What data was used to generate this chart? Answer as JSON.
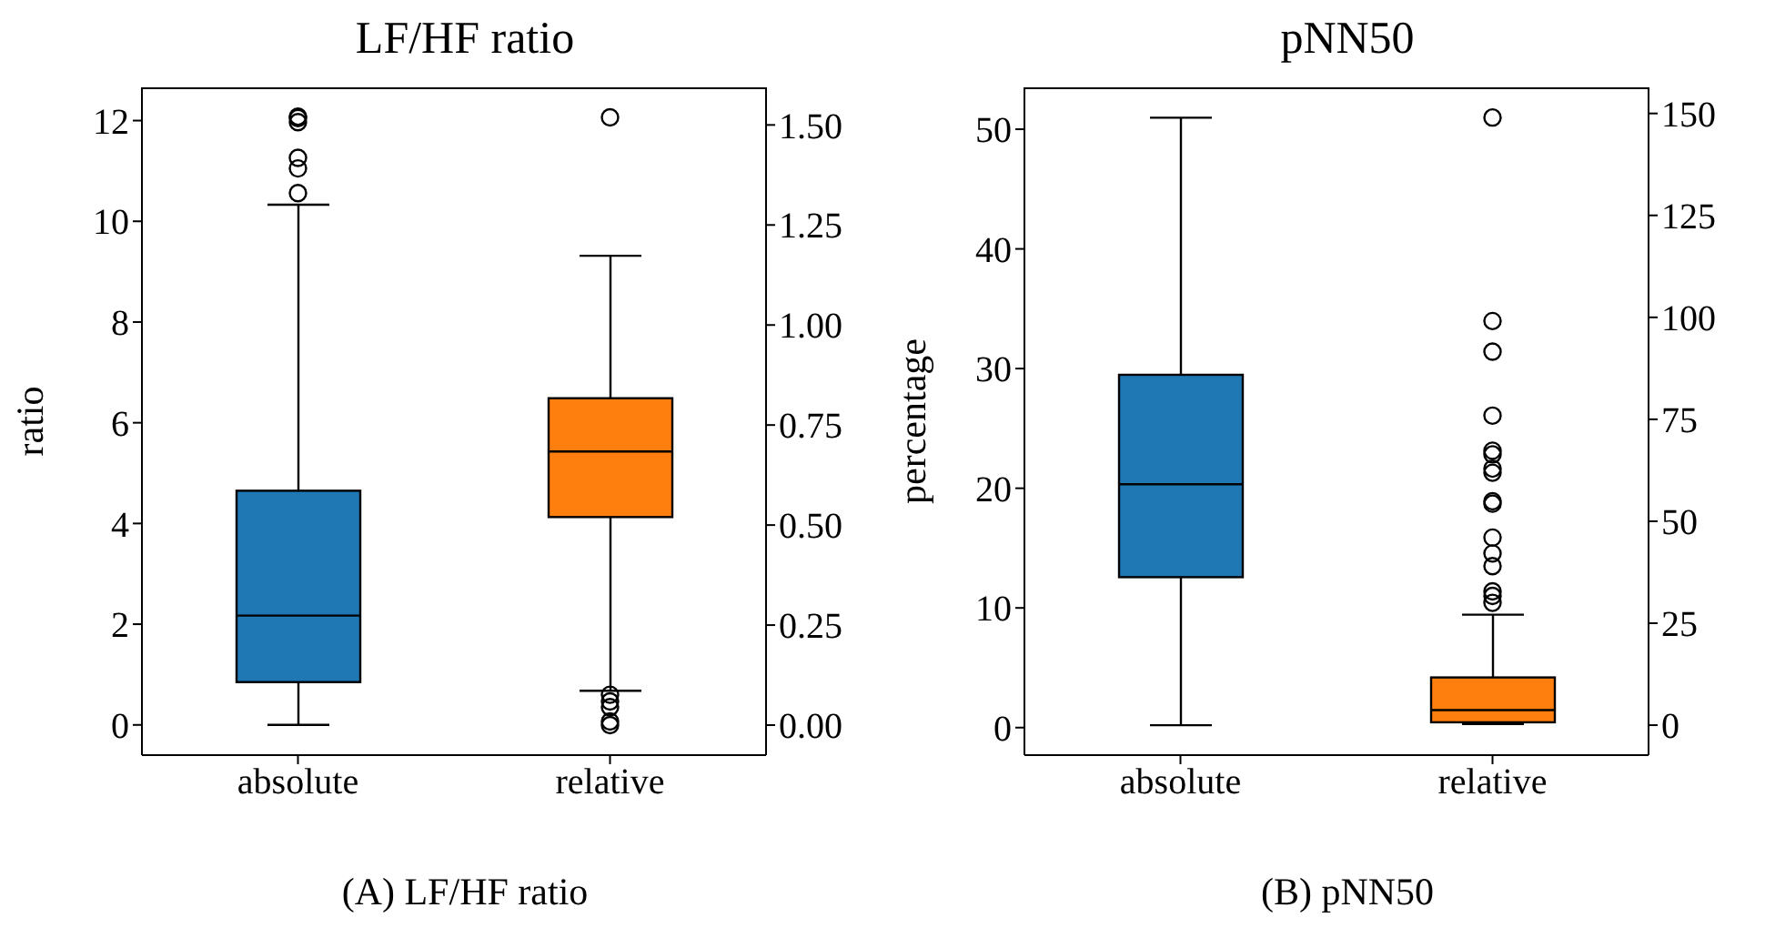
{
  "chart_data": [
    {
      "type": "box",
      "title": "LF/HF ratio",
      "ylabel": "ratio",
      "categories": [
        "absolute",
        "relative"
      ],
      "ylim": [
        -0.6,
        12.66
      ],
      "yticks": [
        0,
        2,
        4,
        6,
        8,
        10,
        12
      ],
      "y2lim": [
        -0.075,
        1.594
      ],
      "y2ticks": [
        {
          "value": 0,
          "label": "0.00"
        },
        {
          "value": 0.25,
          "label": "0.25"
        },
        {
          "value": 0.5,
          "label": "0.50"
        },
        {
          "value": 0.75,
          "label": "0.75"
        },
        {
          "value": 1,
          "label": "1.00"
        },
        {
          "value": 1.25,
          "label": "1.25"
        },
        {
          "value": 1.5,
          "label": "1.50"
        }
      ],
      "marker": "circle",
      "grid": false,
      "annotations": [
        "(A) LF/HF ratio"
      ],
      "series": [
        {
          "color": "#1f77b4",
          "axis": "y",
          "boxes": [
            {
              "low": 0,
              "q1": 0.85,
              "median": 2.17,
              "q3": 4.65,
              "high": 10.33,
              "outliers": [
                10.56,
                11.05,
                11.26,
                11.97,
                12.05,
                12.08
              ]
            },
            null
          ]
        },
        {
          "color": "#ff7f0e",
          "axis": "y2",
          "boxes": [
            null,
            {
              "low": 0.086,
              "q1": 0.52,
              "median": 0.684,
              "q3": 0.817,
              "high": 1.173,
              "outliers": [
                1.519,
                0.076,
                0.059,
                0.045,
                0.009,
                0.0
              ]
            }
          ]
        }
      ]
    },
    {
      "type": "box",
      "title": "pNN50",
      "ylabel": "percentage",
      "categories": [
        "absolute",
        "relative"
      ],
      "ylim": [
        -2.3,
        53.5
      ],
      "yticks": [
        0,
        10,
        20,
        30,
        40,
        50
      ],
      "y2lim": [
        -7.35,
        156.4
      ],
      "y2ticks": [
        0,
        25,
        50,
        75,
        100,
        125,
        150
      ],
      "marker": "circle",
      "grid": false,
      "annotations": [
        "(B) pNN50"
      ],
      "series": [
        {
          "color": "#1f77b4",
          "axis": "y",
          "boxes": [
            {
              "low": 0.2,
              "q1": 12.57,
              "median": 20.33,
              "q3": 29.48,
              "high": 50.96
            },
            null
          ]
        },
        {
          "color": "#ff7f0e",
          "axis": "y2",
          "boxes": [
            null,
            {
              "low": 0.3,
              "q1": 0.7,
              "median": 3.7,
              "q3": 11.7,
              "high": 27.1,
              "outliers": [
                30.0,
                31.7,
                32.8,
                39.0,
                42.1,
                46.0,
                54.3,
                54.9,
                61.9,
                62.9,
                66.4,
                67.3,
                75.9,
                91.6,
                99.1,
                149.0
              ]
            }
          ]
        }
      ]
    }
  ]
}
